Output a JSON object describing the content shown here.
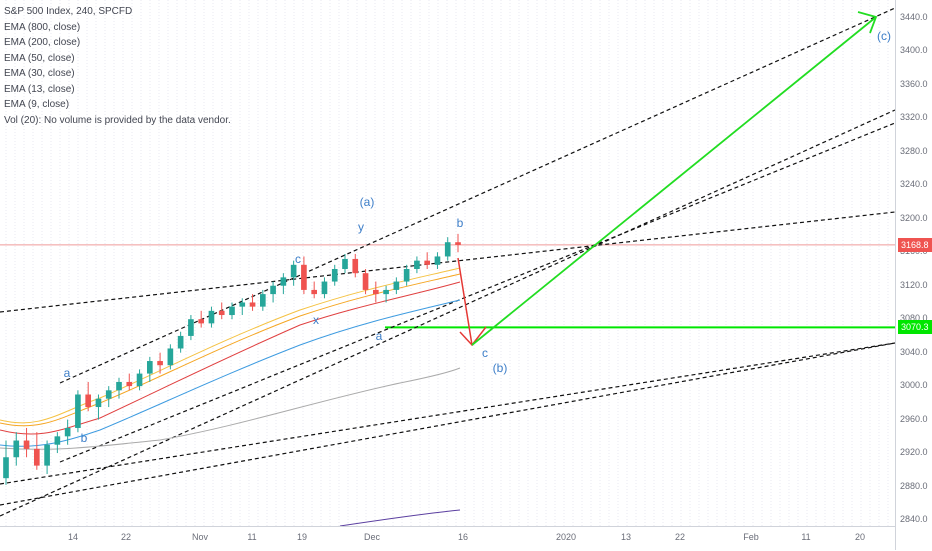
{
  "legend": {
    "title": "S&P 500 Index, 240, SPCFD",
    "lines": [
      "EMA (800, close)",
      "EMA (200, close)",
      "EMA (50, close)",
      "EMA (30, close)",
      "EMA (13, close)",
      "EMA (9, close)",
      "Vol (20): No volume is provided by the data vendor."
    ]
  },
  "price_tags": {
    "last": "3168.8",
    "last_color": "#ef5350",
    "target": "3070.3",
    "target_color": "#00e600"
  },
  "wave_labels": [
    "a",
    "b",
    "c",
    "x",
    "y",
    "(a)",
    "a",
    "b",
    "c",
    "(b)",
    "(c)"
  ],
  "chart_data": {
    "type": "candlestick",
    "title": "S&P 500 Index, 240, SPCFD",
    "y_ticks": [
      2840,
      2880,
      2920,
      2960,
      3000,
      3040,
      3080,
      3120,
      3160,
      3200,
      3240,
      3280,
      3320,
      3360,
      3400,
      3440
    ],
    "y_tick_labels": [
      "2840.0",
      "2880.0",
      "2920.0",
      "2960.0",
      "3000.0",
      "3040.0",
      "3080.0",
      "3120.0",
      "3160.0",
      "3200.0",
      "3240.0",
      "3280.0",
      "3320.0",
      "3360.0",
      "3400.0",
      "3440.0"
    ],
    "ylim": [
      2826,
      3463
    ],
    "x_tick_labels": [
      "14",
      "22",
      "Nov",
      "11",
      "19",
      "Dec",
      "16",
      "2020",
      "13",
      "22",
      "Feb",
      "11",
      "20"
    ],
    "candles_ohlc_approx": [
      [
        2890,
        2935,
        2882,
        2915
      ],
      [
        2915,
        2945,
        2905,
        2935
      ],
      [
        2935,
        2950,
        2915,
        2925
      ],
      [
        2925,
        2945,
        2900,
        2905
      ],
      [
        2905,
        2935,
        2895,
        2930
      ],
      [
        2930,
        2945,
        2920,
        2940
      ],
      [
        2940,
        2960,
        2930,
        2950
      ],
      [
        2950,
        2995,
        2945,
        2990
      ],
      [
        2990,
        3005,
        2970,
        2975
      ],
      [
        2975,
        2990,
        2960,
        2985
      ],
      [
        2985,
        3000,
        2975,
        2995
      ],
      [
        2995,
        3010,
        2985,
        3005
      ],
      [
        3005,
        3015,
        2995,
        3000
      ],
      [
        3000,
        3020,
        2995,
        3015
      ],
      [
        3015,
        3035,
        3005,
        3030
      ],
      [
        3030,
        3040,
        3015,
        3025
      ],
      [
        3025,
        3050,
        3020,
        3045
      ],
      [
        3045,
        3065,
        3040,
        3060
      ],
      [
        3060,
        3085,
        3055,
        3080
      ],
      [
        3080,
        3090,
        3070,
        3075
      ],
      [
        3075,
        3095,
        3070,
        3090
      ],
      [
        3090,
        3100,
        3080,
        3085
      ],
      [
        3085,
        3100,
        3080,
        3095
      ],
      [
        3095,
        3105,
        3085,
        3100
      ],
      [
        3100,
        3110,
        3090,
        3095
      ],
      [
        3095,
        3115,
        3090,
        3110
      ],
      [
        3110,
        3125,
        3100,
        3120
      ],
      [
        3120,
        3135,
        3110,
        3130
      ],
      [
        3130,
        3150,
        3120,
        3145
      ],
      [
        3145,
        3155,
        3110,
        3115
      ],
      [
        3115,
        3125,
        3105,
        3110
      ],
      [
        3110,
        3130,
        3105,
        3125
      ],
      [
        3125,
        3145,
        3120,
        3140
      ],
      [
        3140,
        3158,
        3135,
        3152
      ],
      [
        3152,
        3158,
        3130,
        3135
      ],
      [
        3135,
        3140,
        3110,
        3115
      ],
      [
        3115,
        3125,
        3100,
        3110
      ],
      [
        3110,
        3120,
        3100,
        3115
      ],
      [
        3115,
        3130,
        3110,
        3125
      ],
      [
        3125,
        3145,
        3120,
        3140
      ],
      [
        3140,
        3155,
        3135,
        3150
      ],
      [
        3150,
        3160,
        3140,
        3145
      ],
      [
        3145,
        3160,
        3140,
        3155
      ],
      [
        3155,
        3178,
        3150,
        3172
      ],
      [
        3172,
        3182,
        3160,
        3168.8
      ]
    ],
    "series": [
      {
        "name": "EMA (9, close)",
        "color": "#f5c242"
      },
      {
        "name": "EMA (13, close)",
        "color": "#f5a623"
      },
      {
        "name": "EMA (30, close)",
        "color": "#e04040"
      },
      {
        "name": "EMA (50, close)",
        "color": "#3d9be0"
      },
      {
        "name": "EMA (200, close)",
        "color": "#aaaaaa"
      },
      {
        "name": "EMA (800, close)",
        "color": "#5b3fa0"
      }
    ],
    "horizontal_lines": [
      {
        "value": 3168.8,
        "color": "#ef9a9a"
      },
      {
        "value": 3070.3,
        "color": "#00e600"
      }
    ]
  }
}
